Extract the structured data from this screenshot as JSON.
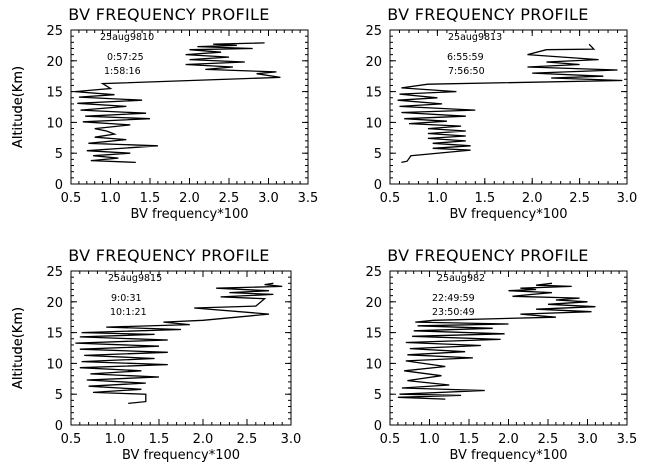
{
  "chart_data": [
    {
      "type": "line",
      "title": "BV FREQUENCY PROFILE",
      "xlabel": "BV frequency*100",
      "ylabel": "Altitude(Km)",
      "xlim": [
        0.5,
        3.5
      ],
      "ylim": [
        0,
        25
      ],
      "xticks": [
        "0.5",
        "1.0",
        "1.5",
        "2.0",
        "2.5",
        "3.0",
        "3.5"
      ],
      "yticks": [
        "0",
        "5",
        "10",
        "15",
        "20",
        "25"
      ],
      "annotations": [
        "25aug9810",
        "0:57:25",
        "1:58:16"
      ],
      "series": [
        {
          "x": [
            1.32,
            0.75,
            1.1,
            0.78,
            1.25,
            0.7,
            1.6,
            0.72,
            1.2,
            0.8,
            1.05,
            0.95,
            0.8,
            1.25,
            0.65,
            1.5,
            0.68,
            1.45,
            0.62,
            1.2,
            0.58,
            1.4,
            0.6,
            1.05,
            0.55,
            1.0,
            0.9,
            3.15,
            2.85,
            3.1,
            2.2,
            2.55,
            1.95,
            2.7,
            2.0,
            2.5,
            1.95,
            2.4,
            2.0,
            2.8,
            2.1,
            2.6,
            2.3,
            2.95
          ],
          "y": [
            3.5,
            3.8,
            4.2,
            4.6,
            5.0,
            5.4,
            6.2,
            6.6,
            7.2,
            7.6,
            8.1,
            8.6,
            9.0,
            9.6,
            10.1,
            10.6,
            11.0,
            11.5,
            12.0,
            12.6,
            13.1,
            13.6,
            14.1,
            14.5,
            15.0,
            15.5,
            16.3,
            17.3,
            17.9,
            18.2,
            18.6,
            19.0,
            19.4,
            19.8,
            20.2,
            20.6,
            21.0,
            21.4,
            21.8,
            22.0,
            22.3,
            22.5,
            22.7,
            22.9
          ]
        }
      ]
    },
    {
      "type": "line",
      "title": "BV FREQUENCY PROFILE",
      "xlabel": "BV frequency*100",
      "ylabel": "Altitude(Km)",
      "xlim": [
        0.5,
        3.0
      ],
      "ylim": [
        0,
        25
      ],
      "xticks": [
        "0.5",
        "1.0",
        "1.5",
        "2.0",
        "2.5",
        "3.0"
      ],
      "yticks": [
        "0",
        "5",
        "10",
        "15",
        "20",
        "25"
      ],
      "annotations": [
        "25aug9813",
        "6:55:59",
        "7:56:50"
      ],
      "series": [
        {
          "x": [
            0.62,
            0.68,
            0.72,
            1.35,
            0.95,
            1.35,
            0.95,
            1.3,
            0.9,
            1.3,
            0.9,
            1.3,
            0.9,
            1.25,
            0.7,
            1.1,
            0.65,
            1.3,
            0.62,
            1.4,
            0.6,
            1.05,
            0.58,
            1.0,
            0.6,
            1.2,
            0.62,
            0.9,
            2.95,
            2.2,
            2.75,
            2.0,
            2.9,
            1.95,
            2.5,
            2.15,
            2.7,
            1.95,
            2.15,
            2.65,
            2.6
          ],
          "y": [
            3.5,
            3.7,
            4.6,
            5.5,
            5.8,
            6.2,
            6.6,
            7.0,
            7.4,
            7.8,
            8.2,
            8.6,
            9.0,
            9.4,
            9.8,
            10.2,
            10.6,
            11.0,
            11.6,
            12.0,
            12.6,
            13.0,
            13.6,
            14.0,
            14.6,
            15.0,
            15.6,
            16.2,
            16.8,
            17.2,
            17.5,
            18.0,
            18.5,
            19.0,
            19.4,
            19.8,
            20.2,
            21.0,
            21.8,
            21.9,
            22.7
          ]
        }
      ]
    },
    {
      "type": "line",
      "title": "BV FREQUENCY PROFILE",
      "xlabel": "BV frequency*100",
      "ylabel": "Altitude(Km)",
      "xlim": [
        0.5,
        3.0
      ],
      "ylim": [
        0,
        25
      ],
      "xticks": [
        "0.5",
        "1.0",
        "1.5",
        "2.0",
        "2.5",
        "3.0"
      ],
      "yticks": [
        "0",
        "5",
        "10",
        "15",
        "20",
        "25"
      ],
      "annotations": [
        "25aug9815",
        "9:0:31",
        "10:1:21"
      ],
      "series": [
        {
          "x": [
            1.15,
            1.35,
            1.35,
            0.75,
            1.3,
            0.7,
            1.35,
            0.68,
            1.5,
            0.72,
            1.3,
            0.6,
            1.6,
            0.62,
            1.45,
            0.65,
            1.6,
            0.6,
            1.5,
            0.55,
            1.6,
            0.6,
            1.45,
            0.62,
            1.75,
            0.9,
            1.85,
            1.55,
            2.0,
            2.75,
            1.9,
            2.6,
            2.7,
            2.2,
            2.8,
            2.3,
            2.75,
            2.15,
            2.9,
            2.7,
            2.8
          ],
          "y": [
            3.5,
            3.8,
            5.0,
            5.3,
            5.8,
            6.3,
            6.8,
            7.3,
            7.8,
            8.3,
            8.8,
            9.3,
            9.8,
            10.3,
            10.8,
            11.3,
            11.8,
            12.3,
            12.8,
            13.3,
            13.8,
            14.3,
            14.7,
            15.0,
            15.5,
            15.9,
            16.3,
            16.7,
            17.0,
            18.0,
            19.0,
            19.3,
            20.5,
            20.8,
            21.2,
            21.5,
            21.8,
            22.2,
            22.5,
            22.8,
            23.0
          ]
        }
      ]
    },
    {
      "type": "line",
      "title": "BV FREQUENCY PROFILE",
      "xlabel": "BV frequency*100",
      "ylabel": "Altitude(Km)",
      "xlim": [
        0.5,
        3.5
      ],
      "ylim": [
        0,
        25
      ],
      "xticks": [
        "0.5",
        "1.0",
        "1.5",
        "2.0",
        "2.5",
        "3.0",
        "3.5"
      ],
      "yticks": [
        "0",
        "5",
        "10",
        "15",
        "20",
        "25"
      ],
      "annotations": [
        "25aug982",
        "22:49:59",
        "23:50:49"
      ],
      "series": [
        {
          "x": [
            1.2,
            0.6,
            1.4,
            0.62,
            1.7,
            0.65,
            1.25,
            0.72,
            1.15,
            0.68,
            1.2,
            0.7,
            1.55,
            0.72,
            1.45,
            0.75,
            1.65,
            0.7,
            1.9,
            0.78,
            1.95,
            0.8,
            1.8,
            0.85,
            2.0,
            0.82,
            1.05,
            2.6,
            2.15,
            3.05,
            2.35,
            3.1,
            2.5,
            3.0,
            2.6,
            2.9,
            2.05,
            2.3,
            2.55,
            2.0,
            2.35,
            2.15,
            2.8,
            2.35,
            2.55
          ],
          "y": [
            4.2,
            4.5,
            4.8,
            5.0,
            5.6,
            6.0,
            6.5,
            7.2,
            8.0,
            8.8,
            9.5,
            10.4,
            10.9,
            11.4,
            11.9,
            12.4,
            12.9,
            13.4,
            13.9,
            14.4,
            14.8,
            15.3,
            15.7,
            16.1,
            16.4,
            16.7,
            17.0,
            17.5,
            18.0,
            18.4,
            18.8,
            19.2,
            19.6,
            20.0,
            20.3,
            20.6,
            20.9,
            21.2,
            21.5,
            21.8,
            22.0,
            22.2,
            22.5,
            22.7,
            23.0
          ]
        }
      ]
    }
  ]
}
